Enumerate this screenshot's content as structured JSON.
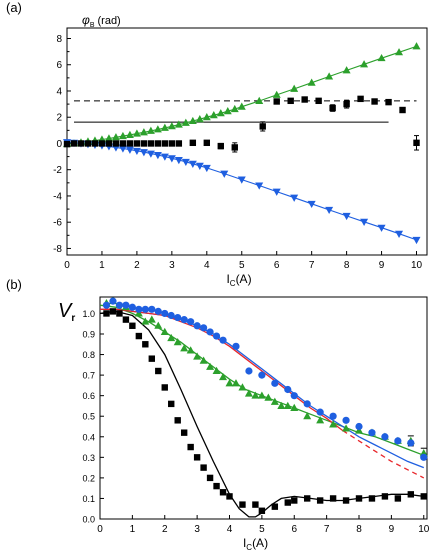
{
  "chart_data": [
    {
      "type": "scatter",
      "panel_label": "(a)",
      "ylabel_symbol": "φ",
      "ylabel_sub": "B",
      "ylabel_unit": "(rad)",
      "xlabel_main": "I",
      "xlabel_sub": "C",
      "xlabel_unit": "(A)",
      "xlim": [
        0,
        10.3
      ],
      "ylim": [
        -8.5,
        8.8
      ],
      "xticks": [
        0,
        1,
        2,
        3,
        4,
        5,
        6,
        7,
        8,
        9,
        10
      ],
      "yticks": [
        -8,
        -6,
        -4,
        -2,
        0,
        2,
        4,
        6,
        8
      ],
      "colors": {
        "green": "#2ca02c",
        "blue": "#1f5fe0",
        "black": "#000000"
      },
      "series": [
        {
          "color": "green",
          "marker": "triangle-up",
          "x": [
            0.0,
            0.2,
            0.4,
            0.6,
            0.8,
            1.0,
            1.2,
            1.4,
            1.6,
            1.8,
            2.0,
            2.2,
            2.4,
            2.6,
            2.8,
            3.0,
            3.2,
            3.4,
            3.6,
            3.8,
            4.0,
            4.2,
            4.4,
            4.6,
            4.8,
            5.0,
            5.5,
            6.0,
            6.5,
            7.0,
            7.5,
            8.0,
            8.5,
            9.0,
            9.5,
            10.0
          ],
          "y": [
            -0.05,
            0.0,
            0.08,
            0.15,
            0.22,
            0.3,
            0.38,
            0.47,
            0.56,
            0.65,
            0.75,
            0.85,
            0.96,
            1.07,
            1.19,
            1.31,
            1.44,
            1.57,
            1.71,
            1.85,
            2.0,
            2.15,
            2.3,
            2.46,
            2.62,
            2.8,
            3.24,
            3.7,
            4.16,
            4.63,
            5.1,
            5.57,
            6.03,
            6.5,
            6.95,
            7.4
          ]
        },
        {
          "color": "blue",
          "marker": "triangle-down",
          "x": [
            0.0,
            0.2,
            0.4,
            0.6,
            0.8,
            1.0,
            1.2,
            1.4,
            1.6,
            1.8,
            2.0,
            2.2,
            2.4,
            2.6,
            2.8,
            3.0,
            3.2,
            3.4,
            3.6,
            3.8,
            4.0,
            4.5,
            5.0,
            5.5,
            6.0,
            6.5,
            7.0,
            7.5,
            8.0,
            8.5,
            9.0,
            9.5,
            10.0
          ],
          "y": [
            0.1,
            0.05,
            0.0,
            -0.05,
            -0.1,
            -0.15,
            -0.22,
            -0.3,
            -0.38,
            -0.47,
            -0.56,
            -0.66,
            -0.77,
            -0.88,
            -1.0,
            -1.13,
            -1.26,
            -1.4,
            -1.55,
            -1.7,
            -1.86,
            -2.3,
            -2.75,
            -3.2,
            -3.67,
            -4.13,
            -4.6,
            -5.06,
            -5.52,
            -5.97,
            -6.42,
            -6.88,
            -7.35
          ]
        },
        {
          "color": "black",
          "marker": "square",
          "x": [
            0.0,
            0.2,
            0.4,
            0.6,
            0.8,
            1.0,
            1.2,
            1.4,
            1.6,
            1.8,
            2.0,
            2.2,
            2.4,
            2.6,
            2.8,
            3.0,
            3.2,
            3.6,
            4.0,
            4.4,
            4.8,
            5.6,
            6.0,
            6.4,
            6.8,
            7.2,
            7.6,
            8.0,
            8.4,
            8.8,
            9.2,
            9.6,
            10.0
          ],
          "y": [
            -0.05,
            0.0,
            0.0,
            0.0,
            0.0,
            0.0,
            0.0,
            0.0,
            0.0,
            0.0,
            0.0,
            0.0,
            0.0,
            0.0,
            0.0,
            0.0,
            0.0,
            0.05,
            0.05,
            -0.2,
            -0.3,
            1.3,
            3.2,
            3.25,
            3.35,
            3.25,
            2.7,
            3.0,
            3.4,
            3.2,
            3.15,
            2.55,
            0.05
          ],
          "err": [
            0,
            0,
            0,
            0,
            0,
            0,
            0,
            0,
            0,
            0,
            0,
            0,
            0,
            0,
            0,
            0,
            0,
            0,
            0,
            0.2,
            0.35,
            0.35,
            0.15,
            0.15,
            0.15,
            0.15,
            0.25,
            0.3,
            0.1,
            0.1,
            0.1,
            0.15,
            0.55
          ]
        }
      ],
      "hlines": [
        {
          "y": 3.25,
          "style": "dashed",
          "xrange": [
            0.2,
            10.0
          ]
        },
        {
          "y": 1.63,
          "style": "solid",
          "xrange": [
            0.2,
            9.2
          ]
        }
      ]
    },
    {
      "type": "scatter",
      "panel_label": "(b)",
      "ylabel_symbol": "V",
      "ylabel_sub": "r",
      "xlabel_main": "I",
      "xlabel_sub": "C",
      "xlabel_unit": "(A)",
      "xlim": [
        0,
        10.1
      ],
      "ylim": [
        0,
        1.08
      ],
      "xticks": [
        0,
        1,
        2,
        3,
        4,
        5,
        6,
        7,
        8,
        9,
        10
      ],
      "yticks": [
        0.0,
        0.1,
        0.2,
        0.3,
        0.4,
        0.5,
        0.6,
        0.7,
        0.8,
        0.9,
        1.0
      ],
      "series": [
        {
          "color": "black",
          "marker": "square",
          "x": [
            0.2,
            0.4,
            0.6,
            0.8,
            1.0,
            1.2,
            1.4,
            1.6,
            1.8,
            2.0,
            2.2,
            2.4,
            2.6,
            2.8,
            3.0,
            3.2,
            3.4,
            3.6,
            3.8,
            4.0,
            4.4,
            4.8,
            5.0,
            5.4,
            5.8,
            6.0,
            6.4,
            6.8,
            7.2,
            7.6,
            8.0,
            8.4,
            8.8,
            9.2,
            9.6,
            10.0
          ],
          "y": [
            1.0,
            1.01,
            1.0,
            0.97,
            0.94,
            0.89,
            0.85,
            0.78,
            0.72,
            0.64,
            0.56,
            0.48,
            0.42,
            0.35,
            0.3,
            0.25,
            0.2,
            0.16,
            0.13,
            0.11,
            0.07,
            0.07,
            0.04,
            0.06,
            0.08,
            0.09,
            0.1,
            0.09,
            0.1,
            0.09,
            0.1,
            0.1,
            0.11,
            0.1,
            0.12,
            0.11
          ]
        },
        {
          "color": "green",
          "marker": "triangle-up",
          "x": [
            0.2,
            0.4,
            0.8,
            1.2,
            1.4,
            1.6,
            1.8,
            2.0,
            2.2,
            2.4,
            2.6,
            2.8,
            3.0,
            3.2,
            3.4,
            3.6,
            3.8,
            4.0,
            4.2,
            4.4,
            4.6,
            4.8,
            5.0,
            5.2,
            5.4,
            5.6,
            5.8,
            6.0,
            6.4,
            6.8,
            7.2,
            7.6,
            8.0,
            8.4,
            8.8,
            9.2,
            9.6,
            10.0
          ],
          "y": [
            1.05,
            1.06,
            1.03,
            1.0,
            0.96,
            0.97,
            0.94,
            0.91,
            0.88,
            0.86,
            0.83,
            0.82,
            0.79,
            0.77,
            0.74,
            0.72,
            0.69,
            0.66,
            0.66,
            0.64,
            0.61,
            0.6,
            0.6,
            0.59,
            0.57,
            0.55,
            0.55,
            0.54,
            0.5,
            0.48,
            0.46,
            0.44,
            0.43,
            0.42,
            0.4,
            0.38,
            0.38,
            0.32
          ],
          "err_points": [
            9.6,
            10.0
          ]
        },
        {
          "color": "blue",
          "marker": "circle",
          "x": [
            0.2,
            0.4,
            0.6,
            0.8,
            1.0,
            1.2,
            1.4,
            1.6,
            1.8,
            2.0,
            2.2,
            2.4,
            2.6,
            2.8,
            3.0,
            3.2,
            3.4,
            3.6,
            3.8,
            4.2,
            4.6,
            5.0,
            5.4,
            5.8,
            6.0,
            6.4,
            6.8,
            7.2,
            7.6,
            8.0,
            8.4,
            8.8,
            9.2,
            9.6,
            10.0
          ],
          "y": [
            1.04,
            1.06,
            1.04,
            1.04,
            1.03,
            1.02,
            1.02,
            1.02,
            1.01,
            1.0,
            0.99,
            0.98,
            0.97,
            0.96,
            0.94,
            0.93,
            0.91,
            0.89,
            0.87,
            0.84,
            0.72,
            0.7,
            0.66,
            0.63,
            0.6,
            0.56,
            0.52,
            0.5,
            0.48,
            0.45,
            0.42,
            0.4,
            0.38,
            0.37,
            0.3
          ]
        }
      ],
      "fit_lines": [
        {
          "color": "black",
          "style": "solid",
          "x": [
            0,
            0.5,
            1.0,
            1.5,
            2.0,
            2.5,
            3.0,
            3.5,
            4.0,
            4.3,
            4.6,
            4.8,
            5.0,
            5.3,
            5.6,
            6.0,
            6.5,
            7.0,
            7.5,
            8.0,
            8.5,
            9.0,
            9.5,
            10.0
          ],
          "y": [
            1.0,
            1.01,
            0.99,
            0.92,
            0.8,
            0.63,
            0.45,
            0.28,
            0.12,
            0.05,
            0.01,
            0.01,
            0.03,
            0.07,
            0.1,
            0.11,
            0.1,
            0.09,
            0.09,
            0.1,
            0.11,
            0.12,
            0.12,
            0.11
          ]
        },
        {
          "color": "green",
          "style": "solid",
          "x": [
            0,
            0.5,
            1.0,
            1.5,
            2.0,
            2.5,
            3.0,
            3.5,
            4.0,
            4.5,
            5.0,
            5.5,
            6.0,
            6.5,
            7.0,
            7.5,
            8.0,
            8.5,
            9.0,
            9.5,
            10.0
          ],
          "y": [
            1.04,
            1.03,
            1.0,
            0.96,
            0.91,
            0.86,
            0.8,
            0.74,
            0.68,
            0.63,
            0.6,
            0.57,
            0.54,
            0.51,
            0.48,
            0.45,
            0.42,
            0.4,
            0.37,
            0.34,
            0.31
          ]
        },
        {
          "color": "blue",
          "style": "solid",
          "x": [
            0,
            0.5,
            1.0,
            1.5,
            2.0,
            2.5,
            3.0,
            3.5,
            4.0,
            4.5,
            5.0,
            5.5,
            6.0,
            6.5,
            7.0,
            7.5,
            8.0,
            8.5,
            9.0,
            9.5,
            10.0
          ],
          "y": [
            1.02,
            1.02,
            1.01,
            1.0,
            0.99,
            0.97,
            0.94,
            0.9,
            0.85,
            0.79,
            0.73,
            0.67,
            0.61,
            0.55,
            0.5,
            0.45,
            0.4,
            0.36,
            0.32,
            0.28,
            0.25
          ]
        },
        {
          "color": "red",
          "style": "solid",
          "x": [
            0,
            0.5,
            1.0,
            1.5,
            2.0,
            2.5,
            3.0,
            3.5,
            4.0,
            4.5,
            5.0,
            5.5,
            6.0,
            6.5,
            7.0,
            7.5
          ],
          "y": [
            1.02,
            1.02,
            1.01,
            1.0,
            0.99,
            0.96,
            0.93,
            0.89,
            0.84,
            0.78,
            0.72,
            0.66,
            0.6,
            0.54,
            0.49,
            0.43
          ]
        },
        {
          "color": "red",
          "style": "dashed",
          "x": [
            7.5,
            8.0,
            8.5,
            9.0,
            9.5,
            10.0
          ],
          "y": [
            0.43,
            0.38,
            0.33,
            0.28,
            0.24,
            0.2
          ]
        }
      ]
    }
  ]
}
